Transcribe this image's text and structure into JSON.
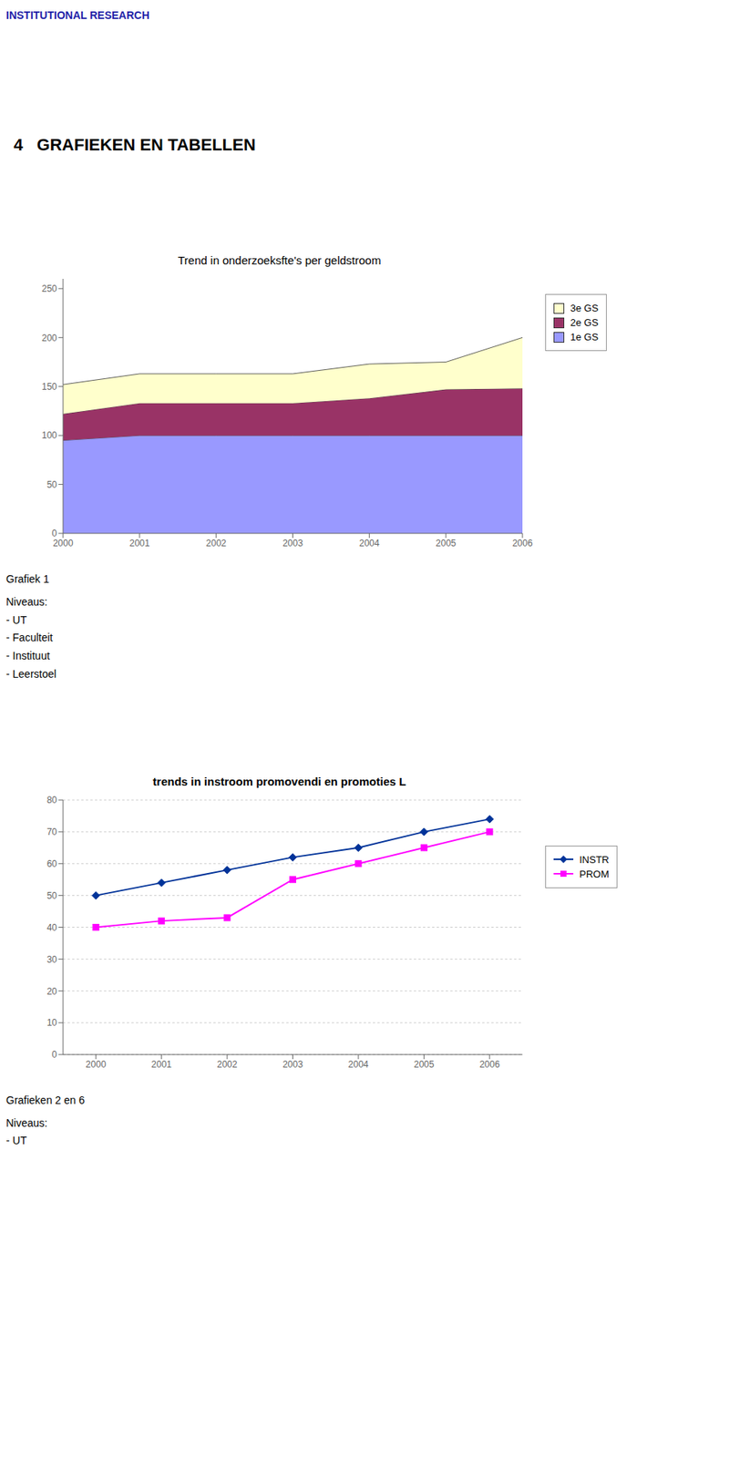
{
  "title": "INSTITUTIONAL RESEARCH",
  "subtitle": "4   GRAFIEKEN EN TABELLEN",
  "chart_data": [
    {
      "type": "area",
      "title": "Trend in onderzoeksfte's per geldstroom",
      "x": [
        2000,
        2001,
        2002,
        2003,
        2004,
        2005,
        2006
      ],
      "series": [
        {
          "name": "1e GS",
          "color": "#9999FF",
          "values": [
            95,
            100,
            100,
            100,
            100,
            100,
            100
          ]
        },
        {
          "name": "2e GS",
          "color": "#993366",
          "values": [
            27,
            33,
            33,
            33,
            38,
            47,
            48
          ]
        },
        {
          "name": "3e GS",
          "color": "#FFFFCC",
          "values": [
            30,
            30,
            30,
            30,
            35,
            28,
            52
          ]
        }
      ],
      "stacked": true,
      "xlim": [
        2000,
        2006
      ],
      "xticks": [
        2000,
        2001,
        2002,
        2003,
        2004,
        2005,
        2006
      ],
      "ylim": [
        0,
        260
      ],
      "yticks": [
        0,
        50,
        100,
        150,
        200,
        250
      ],
      "grid": false,
      "legend": "right",
      "annotations": [
        "Grafiek 1",
        "Niveaus:\n- UT\n- Faculteit\n- Instituut\n- Leerstoel"
      ]
    },
    {
      "type": "line",
      "title": "trends in instroom promovendi en promoties L",
      "x": [
        2000,
        2001,
        2002,
        2003,
        2004,
        2005,
        2006
      ],
      "series": [
        {
          "name": "INSTR",
          "color": "#003399",
          "marker": "diamond",
          "values": [
            50,
            54,
            58,
            62,
            65,
            70,
            74
          ]
        },
        {
          "name": "PROM",
          "color": "#FF00FF",
          "marker": "square",
          "values": [
            40,
            42,
            43,
            55,
            60,
            65,
            70
          ]
        }
      ],
      "xlim": [
        1999.5,
        2006.5
      ],
      "xticks": [
        2000,
        2001,
        2002,
        2003,
        2004,
        2005,
        2006
      ],
      "ylim": [
        0,
        80
      ],
      "yticks": [
        0,
        10,
        20,
        30,
        40,
        50,
        60,
        70,
        80
      ],
      "grid": true,
      "legend": "right",
      "annotations": [
        "Grafieken 2 en 6",
        "Niveaus:\n- UT"
      ]
    }
  ]
}
